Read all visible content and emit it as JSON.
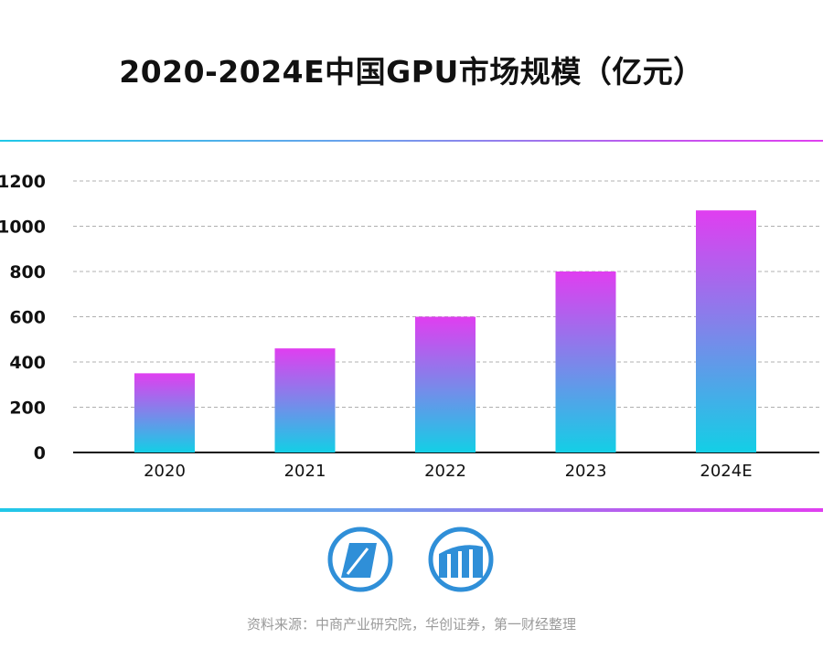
{
  "title": "2020-2024E中国GPU市场规模（亿元）",
  "source": "资料来源：中商产业研究院，华创证券，第一财经整理",
  "colors": {
    "bar_top": "#e03ef0",
    "bar_bottom": "#13cfe6",
    "grid": "#b0b0b0",
    "axis": "#111111",
    "logo": "#2f8fd8"
  },
  "icons": [
    "book-logo-icon",
    "bar-columns-logo-icon"
  ],
  "chart_data": {
    "type": "bar",
    "title": "2020-2024E中国GPU市场规模（亿元）",
    "categories": [
      "2020",
      "2021",
      "2022",
      "2023",
      "2024E"
    ],
    "values": [
      350,
      460,
      600,
      800,
      1070
    ],
    "yticks": [
      0,
      200,
      400,
      600,
      800,
      1000,
      1200
    ],
    "ylim": [
      0,
      1200
    ],
    "xlabel": "",
    "ylabel": "",
    "grid": true,
    "legend": "none"
  }
}
